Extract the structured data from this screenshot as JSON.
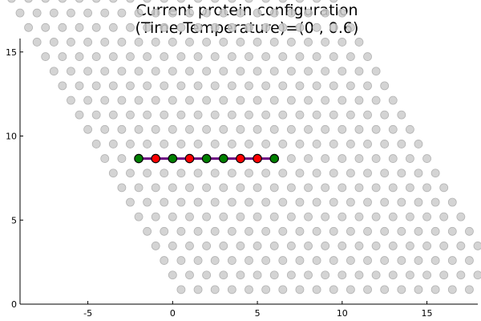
{
  "chart_data": {
    "type": "scatter",
    "title": "Current protein configuration",
    "subtitle": "(Time,Temperature)=(0 , 0.6)",
    "xlabel": "",
    "ylabel": "",
    "xlim": [
      -9,
      18
    ],
    "ylim": [
      0,
      15.8
    ],
    "grid": false,
    "legend": "none",
    "x_ticks": [
      -5,
      0,
      5,
      10,
      15
    ],
    "y_ticks": [
      0,
      5,
      10,
      15
    ],
    "lattice": {
      "description_rows": "triangular lattice, 20 columns per row, 21 rows",
      "row_count": 21,
      "columns_per_row": 20,
      "row_spacing_y": 0.866,
      "column_spacing_x": 1.0,
      "row_shift_x": -0.5,
      "origin": [
        0.5,
        0.866
      ],
      "color": "#cccccc"
    },
    "protein": {
      "line_color": "#6a0080",
      "points": [
        {
          "x": -2,
          "y": 8.66,
          "type": "H",
          "color": "#008000"
        },
        {
          "x": -1,
          "y": 8.66,
          "type": "P",
          "color": "#ff0000"
        },
        {
          "x": 0,
          "y": 8.66,
          "type": "H",
          "color": "#008000"
        },
        {
          "x": 1,
          "y": 8.66,
          "type": "P",
          "color": "#ff0000"
        },
        {
          "x": 2,
          "y": 8.66,
          "type": "H",
          "color": "#008000"
        },
        {
          "x": 3,
          "y": 8.66,
          "type": "H",
          "color": "#008000"
        },
        {
          "x": 4,
          "y": 8.66,
          "type": "P",
          "color": "#ff0000"
        },
        {
          "x": 5,
          "y": 8.66,
          "type": "P",
          "color": "#ff0000"
        },
        {
          "x": 6,
          "y": 8.66,
          "type": "H",
          "color": "#008000"
        }
      ]
    }
  }
}
